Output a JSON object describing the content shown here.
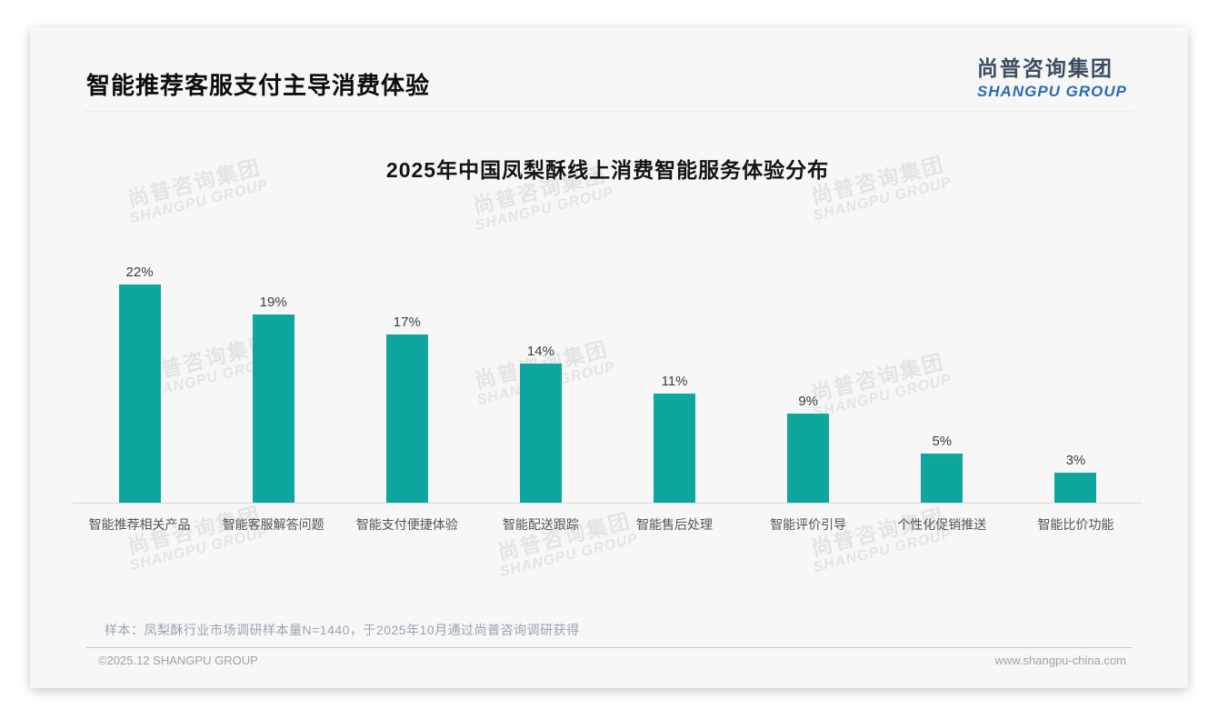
{
  "page": {
    "title": "智能推荐客服支付主导消费体验",
    "logo": {
      "cn": "尚普咨询集团",
      "en": "SHANGPU GROUP"
    },
    "watermark": {
      "cn": "尚普咨询集团",
      "en": "SHANGPU GROUP"
    },
    "note": "样本：凤梨酥行业市场调研样本量N=1440，于2025年10月通过尚普咨询调研获得",
    "footer": {
      "copyright": "©2025.12 SHANGPU GROUP",
      "website": "www.shangpu-china.com"
    }
  },
  "chart_data": {
    "type": "bar",
    "title": "2025年中国凤梨酥线上消费智能服务体验分布",
    "categories": [
      "智能推荐相关产品",
      "智能客服解答问题",
      "智能支付便捷体验",
      "智能配送跟踪",
      "智能售后处理",
      "智能评价引导",
      "个性化促销推送",
      "智能比价功能"
    ],
    "values": [
      22,
      19,
      17,
      14,
      11,
      9,
      5,
      3
    ],
    "unit": "%",
    "data_labels": true,
    "bar_color": "#0fa6a0",
    "axis_line_color": "#d9d9d9",
    "xlabel": "",
    "ylabel": "",
    "ylim": [
      0,
      24
    ],
    "grid": false,
    "legend": "none"
  }
}
